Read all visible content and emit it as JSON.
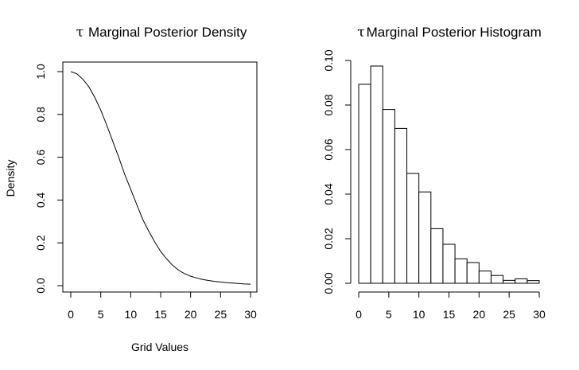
{
  "chart_data": [
    {
      "type": "line",
      "title": "Marginal Posterior Density",
      "title_symbol": "τ",
      "xlabel": "Grid Values",
      "ylabel": "Density",
      "xlim": [
        0,
        30
      ],
      "ylim": [
        0,
        1.0
      ],
      "xticks": [
        "0",
        "5",
        "10",
        "15",
        "20",
        "25",
        "30"
      ],
      "yticks": [
        "0.0",
        "0.2",
        "0.4",
        "0.6",
        "0.8",
        "1.0"
      ],
      "grid": false,
      "box": true,
      "series": [
        {
          "x": [
            0,
            1,
            2,
            3,
            4,
            5,
            6,
            7,
            8,
            9,
            10,
            11,
            12,
            13,
            14,
            15,
            16,
            17,
            18,
            19,
            20,
            21,
            22,
            23,
            24,
            25,
            26,
            27,
            28,
            29,
            30
          ],
          "y": [
            1.0,
            0.99,
            0.965,
            0.93,
            0.88,
            0.82,
            0.75,
            0.675,
            0.6,
            0.52,
            0.45,
            0.38,
            0.31,
            0.255,
            0.205,
            0.16,
            0.125,
            0.095,
            0.072,
            0.056,
            0.044,
            0.036,
            0.029,
            0.024,
            0.02,
            0.017,
            0.014,
            0.012,
            0.01,
            0.008,
            0.007
          ]
        }
      ]
    },
    {
      "type": "bar",
      "title": "Marginal Posterior Histogram",
      "title_symbol": "τ",
      "xlabel": "",
      "ylabel": "",
      "xlim": [
        0,
        30
      ],
      "ylim": [
        0,
        0.1
      ],
      "xticks": [
        "0",
        "5",
        "10",
        "15",
        "20",
        "25",
        "30"
      ],
      "yticks": [
        "0.00",
        "0.02",
        "0.04",
        "0.06",
        "0.08",
        "0.10"
      ],
      "grid": false,
      "box": false,
      "bin_edges": [
        0,
        2,
        4,
        6,
        8,
        10,
        12,
        14,
        16,
        18,
        20,
        22,
        24,
        26,
        28,
        30
      ],
      "values": [
        0.0893,
        0.0975,
        0.078,
        0.0695,
        0.0493,
        0.041,
        0.0245,
        0.0175,
        0.011,
        0.0093,
        0.0055,
        0.0035,
        0.0013,
        0.002,
        0.0012
      ]
    }
  ]
}
